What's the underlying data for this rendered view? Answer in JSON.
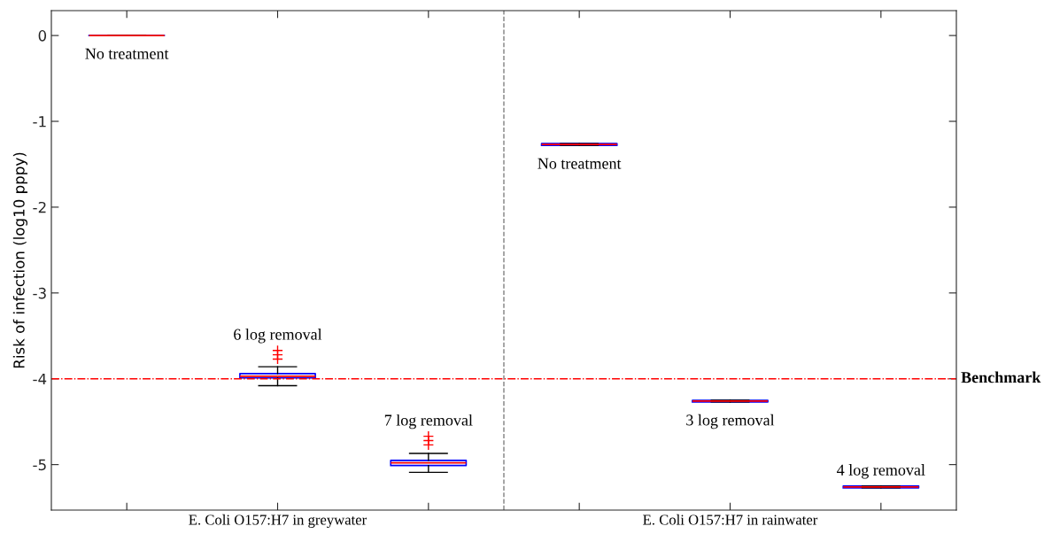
{
  "chart_data": {
    "type": "box",
    "ylabel": "Risk of infection (log10 pppy)",
    "categories": [
      null,
      "E. Coli O157:H7 in greywater",
      null,
      null,
      "E. Coli O157:H7 in rainwater",
      null
    ],
    "ylim": [
      -5.53,
      0.29
    ],
    "yticks": [
      -5,
      -4,
      -3,
      -2,
      -1,
      0
    ],
    "color": "#0000ff",
    "boxes": [
      {
        "low": 0,
        "q1": 0,
        "median": 0,
        "q3": 0,
        "high": 0
      },
      {
        "low": -4.08,
        "q1": -3.99,
        "median": -3.97,
        "q3": -3.94,
        "high": -3.86,
        "outliers": [
          -3.67,
          -3.72,
          -3.77
        ]
      },
      {
        "low": -5.09,
        "q1": -5.01,
        "median": -4.98,
        "q3": -4.95,
        "high": -4.87,
        "outliers": [
          -4.67,
          -4.72,
          -4.77
        ]
      },
      {
        "low": -1.28,
        "q1": -1.28,
        "median": -1.27,
        "q3": -1.26,
        "high": -1.26
      },
      {
        "low": -4.27,
        "q1": -4.27,
        "median": -4.26,
        "q3": -4.25,
        "high": -4.25
      },
      {
        "low": -5.27,
        "q1": -5.27,
        "median": -5.26,
        "q3": -5.25,
        "high": -5.25
      }
    ],
    "annotations": [
      "No treatment",
      "6 log removal",
      "7 log removal",
      "No treatment",
      "3 log removal",
      "4 log removal"
    ],
    "ref_lines": [
      {
        "axis": "y",
        "value": -4,
        "label": "Benchmark",
        "color": "#ff0000",
        "line_style": "dashdot"
      }
    ],
    "grid": false
  }
}
